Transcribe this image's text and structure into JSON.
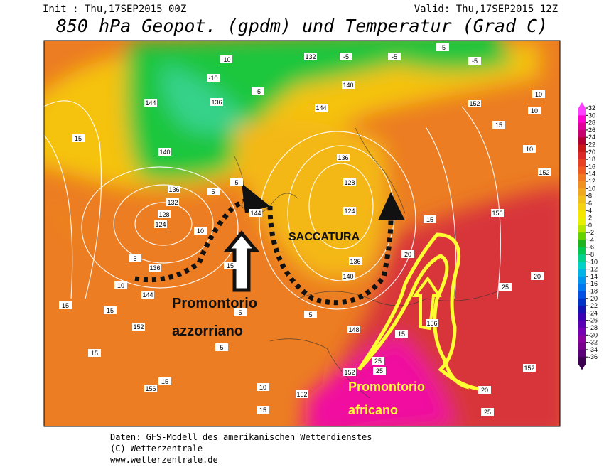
{
  "header": {
    "init": "Init : Thu,17SEP2015 00Z",
    "valid": "Valid: Thu,17SEP2015 12Z",
    "title": "850 hPa Geopot. (gpdm) und Temperatur (Grad C)"
  },
  "map": {
    "contour_labels": [
      "144",
      "136",
      "132",
      "-5",
      "-5",
      "140",
      "144",
      "140",
      "136",
      "132",
      "128",
      "124",
      "5",
      "136",
      "144",
      "10",
      "15",
      "15",
      "152",
      "15",
      "5",
      "144",
      "128",
      "124",
      "136",
      "140",
      "136",
      "152",
      "148",
      "156",
      "15",
      "10",
      "152",
      "15",
      "25",
      "25",
      "20",
      "156",
      "25",
      "20",
      "152",
      "20",
      "25",
      "152",
      "10",
      "15",
      "10",
      "152",
      "156",
      "15",
      "-5",
      "10",
      "-10",
      "-5",
      "5",
      "5",
      "10",
      "15",
      "5",
      "5",
      "15",
      "-5",
      "-10",
      "15"
    ],
    "annotations": {
      "azores": [
        "Promontorio",
        "azzorriano"
      ],
      "trough": "SACCATURA",
      "african": [
        "Promontorio",
        "africano"
      ]
    }
  },
  "legend": {
    "ticks": [
      32,
      30,
      28,
      26,
      24,
      22,
      20,
      18,
      16,
      14,
      12,
      10,
      8,
      6,
      4,
      2,
      0,
      -2,
      -4,
      -6,
      -8,
      -10,
      -12,
      -14,
      -16,
      -18,
      -20,
      -22,
      -24,
      -26,
      -28,
      -30,
      -32,
      -34,
      -36
    ]
  },
  "footer": [
    "Daten: GFS-Modell des amerikanischen Wetterdienstes",
    "(C) Wetterzentrale",
    "www.wetterzentrale.de"
  ]
}
